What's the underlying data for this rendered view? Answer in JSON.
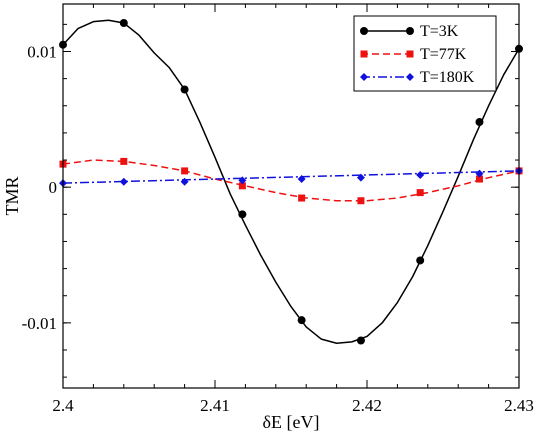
{
  "chart_data": {
    "type": "line",
    "xlabel": "δE [eV]",
    "ylabel": "TMR",
    "xlim": [
      2.4,
      2.43
    ],
    "ylim": [
      -0.0148,
      0.0135
    ],
    "x_ticks": [
      "2.4",
      "2.41",
      "2.42",
      "2.43"
    ],
    "y_ticks": [
      "-0.01",
      "0",
      "0.01"
    ],
    "grid": false,
    "legend_position": "top-right",
    "series": [
      {
        "name": "T=3K",
        "color": "#000000",
        "line_style": "solid",
        "marker": "circle",
        "x": [
          2.4,
          2.404,
          2.408,
          2.4118,
          2.4157,
          2.4196,
          2.4235,
          2.4274,
          2.43
        ],
        "y": [
          0.0105,
          0.0121,
          0.0072,
          -0.002,
          -0.0098,
          -0.0113,
          -0.0054,
          0.0048,
          0.0102
        ],
        "curve_x": [
          2.4,
          2.401,
          2.402,
          2.403,
          2.404,
          2.405,
          2.406,
          2.407,
          2.408,
          2.409,
          2.41,
          2.411,
          2.412,
          2.413,
          2.414,
          2.415,
          2.416,
          2.417,
          2.418,
          2.419,
          2.42,
          2.421,
          2.422,
          2.423,
          2.424,
          2.425,
          2.426,
          2.427,
          2.428,
          2.429,
          2.43
        ],
        "curve_y": [
          0.0105,
          0.0117,
          0.0122,
          0.0123,
          0.0121,
          0.0112,
          0.0099,
          0.0088,
          0.0072,
          0.0048,
          0.0022,
          -0.0005,
          -0.0028,
          -0.005,
          -0.007,
          -0.0088,
          -0.0103,
          -0.0112,
          -0.0115,
          -0.0114,
          -0.011,
          -0.01,
          -0.0085,
          -0.0066,
          -0.0043,
          -0.0018,
          0.0008,
          0.0035,
          0.006,
          0.0083,
          0.0102
        ]
      },
      {
        "name": "T=77K",
        "color": "#ee1111",
        "line_style": "dashed",
        "marker": "square",
        "x": [
          2.4,
          2.404,
          2.408,
          2.4118,
          2.4157,
          2.4196,
          2.4235,
          2.4274,
          2.43
        ],
        "y": [
          0.0017,
          0.0019,
          0.0012,
          0.0001,
          -0.0008,
          -0.001,
          -0.0004,
          0.0006,
          0.0012
        ],
        "curve_x": [
          2.4,
          2.402,
          2.404,
          2.406,
          2.408,
          2.41,
          2.412,
          2.414,
          2.416,
          2.418,
          2.42,
          2.422,
          2.424,
          2.426,
          2.428,
          2.43
        ],
        "curve_y": [
          0.0017,
          0.002,
          0.0019,
          0.0016,
          0.0012,
          0.0006,
          0.0001,
          -0.0004,
          -0.0008,
          -0.001,
          -0.001,
          -0.0008,
          -0.0004,
          0.0001,
          0.0007,
          0.0012
        ]
      },
      {
        "name": "T=180K",
        "color": "#1111dd",
        "line_style": "dash-dot",
        "marker": "diamond",
        "x": [
          2.4,
          2.404,
          2.408,
          2.4118,
          2.4157,
          2.4196,
          2.4235,
          2.4274,
          2.43
        ],
        "y": [
          0.0003,
          0.0004,
          0.0004,
          0.0005,
          0.0006,
          0.0007,
          0.0009,
          0.001,
          0.0012
        ],
        "curve_x": [
          2.4,
          2.43
        ],
        "curve_y": [
          0.0003,
          0.0012
        ]
      }
    ]
  }
}
